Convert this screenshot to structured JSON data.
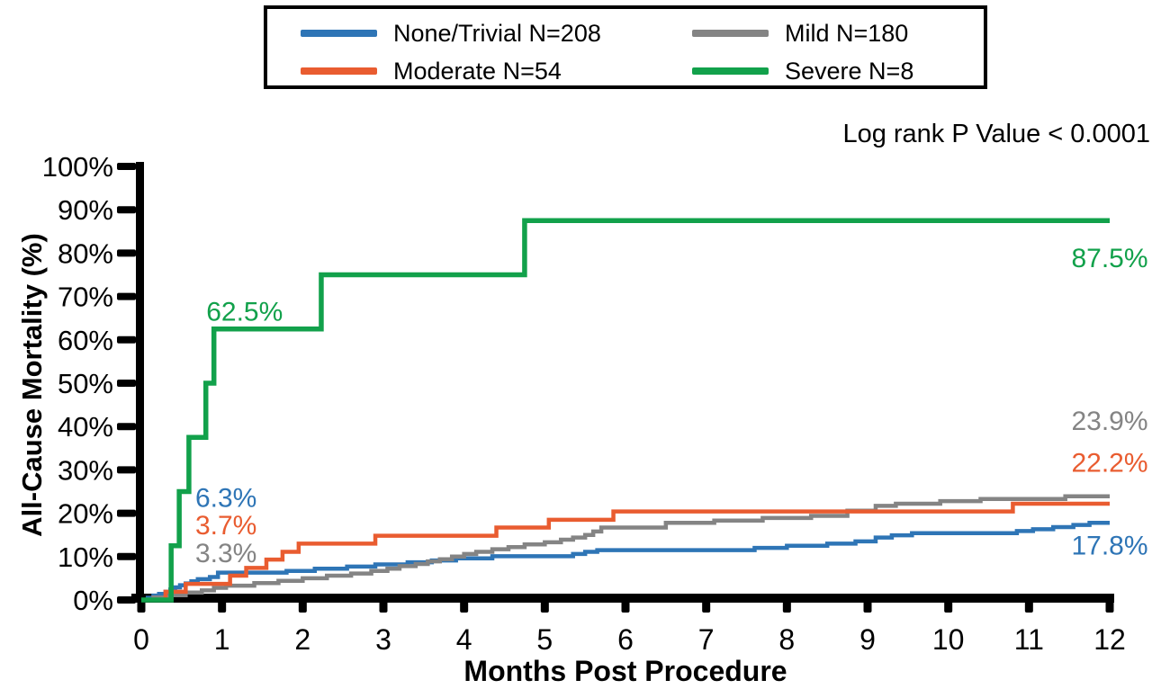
{
  "legend": {
    "items": [
      {
        "label": "None/Trivial N=208",
        "color": "#2E75B6"
      },
      {
        "label": "Mild N=180",
        "color": "#848484"
      },
      {
        "label": "Moderate N=54",
        "color": "#E95C30"
      },
      {
        "label": "Severe N=8",
        "color": "#12A14B"
      }
    ]
  },
  "stats_note": "Log rank P Value < 0.0001",
  "chart_data": {
    "type": "line",
    "subtype": "step-survival",
    "title": "",
    "xlabel": "Months Post Procedure",
    "ylabel": "All-Cause Mortality (%)",
    "xlim": [
      0,
      12
    ],
    "ylim": [
      0,
      100
    ],
    "grid": false,
    "legend_position": "top",
    "xticks": {
      "values": [
        0,
        1,
        2,
        3,
        4,
        5,
        6,
        7,
        8,
        9,
        10,
        11,
        12
      ],
      "labels": [
        "0",
        "1",
        "2",
        "3",
        "4",
        "5",
        "6",
        "7",
        "8",
        "9",
        "10",
        "11",
        "12"
      ]
    },
    "yticks": {
      "values": [
        0,
        10,
        20,
        30,
        40,
        50,
        60,
        70,
        80,
        90,
        100
      ],
      "labels": [
        "0%",
        "10%",
        "20%",
        "30%",
        "40%",
        "50%",
        "60%",
        "70%",
        "80%",
        "90%",
        "100%"
      ]
    },
    "series": [
      {
        "name": "None/Trivial N=208",
        "color": "#2E75B6",
        "n": 208,
        "final_value": 17.8,
        "points": [
          [
            0,
            0
          ],
          [
            0.08,
            0.5
          ],
          [
            0.15,
            1.0
          ],
          [
            0.22,
            1.4
          ],
          [
            0.3,
            1.9
          ],
          [
            0.36,
            2.4
          ],
          [
            0.42,
            2.9
          ],
          [
            0.48,
            3.4
          ],
          [
            0.55,
            3.8
          ],
          [
            0.62,
            4.3
          ],
          [
            0.7,
            4.8
          ],
          [
            0.85,
            5.3
          ],
          [
            0.95,
            6.3
          ],
          [
            1.8,
            6.7
          ],
          [
            2.15,
            7.2
          ],
          [
            2.55,
            7.7
          ],
          [
            2.9,
            8.2
          ],
          [
            3.3,
            8.7
          ],
          [
            3.6,
            9.1
          ],
          [
            3.9,
            9.6
          ],
          [
            4.35,
            10.1
          ],
          [
            5.35,
            10.6
          ],
          [
            5.5,
            11.1
          ],
          [
            5.65,
            11.5
          ],
          [
            7.6,
            12.0
          ],
          [
            8.0,
            12.5
          ],
          [
            8.5,
            13.0
          ],
          [
            8.85,
            13.5
          ],
          [
            9.1,
            14.4
          ],
          [
            9.3,
            14.9
          ],
          [
            9.55,
            15.4
          ],
          [
            10.85,
            15.9
          ],
          [
            11.05,
            16.3
          ],
          [
            11.3,
            16.8
          ],
          [
            11.55,
            17.3
          ],
          [
            11.75,
            17.8
          ]
        ]
      },
      {
        "name": "Mild N=180",
        "color": "#848484",
        "n": 180,
        "final_value": 23.9,
        "points": [
          [
            0,
            0
          ],
          [
            0.15,
            0.6
          ],
          [
            0.35,
            1.1
          ],
          [
            0.55,
            1.7
          ],
          [
            0.75,
            2.2
          ],
          [
            0.9,
            2.8
          ],
          [
            1.05,
            3.3
          ],
          [
            1.4,
            3.9
          ],
          [
            1.7,
            4.4
          ],
          [
            2.0,
            5.0
          ],
          [
            2.3,
            5.6
          ],
          [
            2.6,
            6.1
          ],
          [
            2.85,
            6.7
          ],
          [
            3.05,
            7.2
          ],
          [
            3.2,
            7.8
          ],
          [
            3.4,
            8.3
          ],
          [
            3.55,
            8.9
          ],
          [
            3.7,
            9.4
          ],
          [
            3.85,
            10.0
          ],
          [
            4.0,
            10.6
          ],
          [
            4.15,
            11.1
          ],
          [
            4.35,
            11.7
          ],
          [
            4.55,
            12.2
          ],
          [
            4.75,
            12.8
          ],
          [
            5.0,
            13.3
          ],
          [
            5.2,
            13.9
          ],
          [
            5.35,
            14.4
          ],
          [
            5.5,
            15.0
          ],
          [
            5.6,
            15.8
          ],
          [
            5.7,
            16.7
          ],
          [
            6.5,
            17.8
          ],
          [
            7.1,
            18.3
          ],
          [
            7.7,
            18.9
          ],
          [
            8.3,
            19.4
          ],
          [
            8.75,
            20.6
          ],
          [
            9.1,
            21.7
          ],
          [
            9.35,
            22.2
          ],
          [
            9.9,
            22.8
          ],
          [
            10.4,
            23.3
          ],
          [
            11.45,
            23.9
          ]
        ]
      },
      {
        "name": "Moderate N=54",
        "color": "#E95C30",
        "n": 54,
        "final_value": 22.2,
        "points": [
          [
            0,
            0
          ],
          [
            0.3,
            1.9
          ],
          [
            0.55,
            3.7
          ],
          [
            1.1,
            5.6
          ],
          [
            1.3,
            7.4
          ],
          [
            1.55,
            9.3
          ],
          [
            1.75,
            11.1
          ],
          [
            1.95,
            13.0
          ],
          [
            2.9,
            14.8
          ],
          [
            4.4,
            16.7
          ],
          [
            5.05,
            18.5
          ],
          [
            5.85,
            20.4
          ],
          [
            10.8,
            22.2
          ]
        ]
      },
      {
        "name": "Severe N=8",
        "color": "#12A14B",
        "n": 8,
        "final_value": 87.5,
        "points": [
          [
            0,
            0
          ],
          [
            0.37,
            12.5
          ],
          [
            0.47,
            25.0
          ],
          [
            0.59,
            37.5
          ],
          [
            0.8,
            50.0
          ],
          [
            0.9,
            62.5
          ],
          [
            2.23,
            75.0
          ],
          [
            4.75,
            87.5
          ]
        ]
      }
    ],
    "annotations": [
      {
        "text": "62.5%",
        "series": "Severe N=8",
        "x": 1.28,
        "y": 66.5
      },
      {
        "text": "6.3%",
        "series": "None/Trivial N=208",
        "x": 1.05,
        "y": 23.5
      },
      {
        "text": "3.7%",
        "series": "Moderate N=54",
        "x": 1.05,
        "y": 17.2
      },
      {
        "text": "3.3%",
        "series": "Mild N=180",
        "x": 1.05,
        "y": 10.8
      },
      {
        "text": "87.5%",
        "series": "Severe N=8",
        "x": 12.0,
        "y": 78.8
      },
      {
        "text": "23.9%",
        "series": "Mild N=180",
        "x": 12.0,
        "y": 41.3
      },
      {
        "text": "22.2%",
        "series": "Moderate N=54",
        "x": 12.0,
        "y": 31.6
      },
      {
        "text": "17.8%",
        "series": "None/Trivial N=208",
        "x": 12.0,
        "y": 12.6
      }
    ]
  }
}
